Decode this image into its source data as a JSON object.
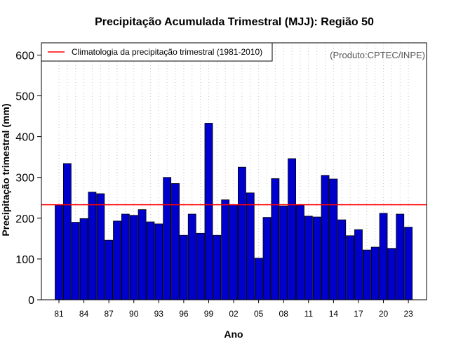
{
  "chart_data": {
    "type": "bar",
    "title": "Precipitação Acumulada Trimestral (MJJ): Região 50",
    "xlabel": "Ano",
    "ylabel": "Precipitação trimestral (mm)",
    "ylim": [
      0,
      630
    ],
    "yticks": [
      0,
      100,
      200,
      300,
      400,
      500,
      600
    ],
    "xtick_labels": [
      "81",
      "84",
      "87",
      "90",
      "93",
      "96",
      "99",
      "02",
      "05",
      "08",
      "11",
      "14",
      "17",
      "20",
      "23"
    ],
    "grid": "vertical dotted",
    "categories": [
      "1981",
      "1982",
      "1983",
      "1984",
      "1985",
      "1986",
      "1987",
      "1988",
      "1989",
      "1990",
      "1991",
      "1992",
      "1993",
      "1994",
      "1995",
      "1996",
      "1997",
      "1998",
      "1999",
      "2000",
      "2001",
      "2002",
      "2003",
      "2004",
      "2005",
      "2006",
      "2007",
      "2008",
      "2009",
      "2010",
      "2011",
      "2012",
      "2013",
      "2014",
      "2015",
      "2016",
      "2017",
      "2018",
      "2019",
      "2020",
      "2021",
      "2022",
      "2023"
    ],
    "values": [
      232,
      334,
      190,
      199,
      264,
      260,
      146,
      193,
      210,
      207,
      221,
      191,
      186,
      300,
      285,
      158,
      210,
      163,
      433,
      158,
      245,
      233,
      325,
      262,
      102,
      202,
      297,
      230,
      346,
      232,
      205,
      203,
      305,
      296,
      196,
      157,
      172,
      122,
      129,
      212,
      126,
      210,
      178
    ],
    "bar_color": "#0000cd",
    "climatology": {
      "label": "Climatologia da precipitação trimestral (1981-2010)",
      "value": 233,
      "color": "#ff0000"
    },
    "legend_position": "top-left",
    "credit": "(Produto:CPTEC/INPE)"
  }
}
